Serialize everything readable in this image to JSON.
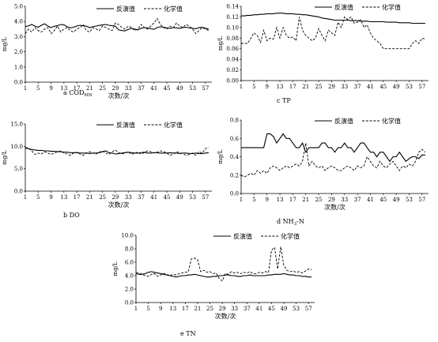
{
  "chart_data": [
    {
      "id": "a",
      "type": "line",
      "caption_letter": "a",
      "caption_text": "COD",
      "caption_sub": "MN",
      "ylabel": "mg/L",
      "xlabel": "次数/次",
      "ylim": [
        0,
        5
      ],
      "yticks": [
        "0.0",
        "1.0",
        "2.0",
        "3.0",
        "4.0",
        "5.0"
      ],
      "xlim": [
        1,
        59
      ],
      "xticks": [
        1,
        5,
        9,
        13,
        17,
        21,
        25,
        29,
        33,
        37,
        41,
        45,
        49,
        53,
        57
      ],
      "series": [
        {
          "name": "反演值",
          "style": "solid",
          "values": [
            3.65,
            3.72,
            3.8,
            3.7,
            3.62,
            3.75,
            3.85,
            3.7,
            3.6,
            3.68,
            3.72,
            3.8,
            3.78,
            3.65,
            3.58,
            3.62,
            3.7,
            3.75,
            3.72,
            3.68,
            3.6,
            3.65,
            3.7,
            3.74,
            3.78,
            3.8,
            3.75,
            3.72,
            3.7,
            3.45,
            3.4,
            3.38,
            3.48,
            3.55,
            3.5,
            3.45,
            3.55,
            3.6,
            3.58,
            3.52,
            3.48,
            3.6,
            3.65,
            3.62,
            3.58,
            3.55,
            3.6,
            3.58,
            3.55,
            3.6,
            3.62,
            3.58,
            3.55,
            3.52,
            3.6,
            3.62,
            3.55,
            3.5
          ]
        },
        {
          "name": "化学值",
          "style": "dashed",
          "values": [
            3.2,
            3.5,
            3.3,
            3.6,
            3.4,
            3.3,
            3.5,
            3.6,
            3.2,
            3.4,
            3.7,
            3.3,
            3.5,
            3.6,
            3.4,
            3.3,
            3.5,
            3.6,
            3.8,
            3.4,
            3.3,
            3.6,
            3.5,
            3.4,
            3.7,
            3.6,
            3.5,
            3.4,
            3.9,
            3.8,
            3.6,
            3.5,
            3.7,
            3.6,
            3.4,
            3.5,
            3.8,
            3.6,
            3.5,
            3.7,
            3.9,
            4.2,
            3.8,
            3.6,
            3.5,
            3.7,
            3.6,
            3.9,
            3.7,
            3.6,
            3.8,
            3.7,
            3.5,
            3.2,
            3.4,
            3.6,
            3.5,
            3.4
          ]
        }
      ]
    },
    {
      "id": "c",
      "type": "line",
      "caption_letter": "c",
      "caption_text": "TP",
      "caption_sub": "",
      "ylabel": "mg/L",
      "xlabel": "",
      "ylim": [
        0,
        0.14
      ],
      "yticks": [
        "0.00",
        "0.02",
        "0.04",
        "0.06",
        "0.08",
        "0.10",
        "0.12",
        "0.14"
      ],
      "xlim": [
        1,
        59
      ],
      "xticks": [
        1,
        5,
        9,
        13,
        17,
        21,
        25,
        29,
        33,
        37,
        41,
        45,
        49,
        53,
        57
      ],
      "series": [
        {
          "name": "反演值",
          "style": "solid",
          "values": [
            0.122,
            0.122,
            0.123,
            0.123,
            0.124,
            0.124,
            0.125,
            0.125,
            0.126,
            0.126,
            0.126,
            0.127,
            0.127,
            0.127,
            0.126,
            0.126,
            0.126,
            0.125,
            0.125,
            0.124,
            0.124,
            0.123,
            0.122,
            0.121,
            0.12,
            0.118,
            0.117,
            0.116,
            0.115,
            0.114,
            0.114,
            0.114,
            0.114,
            0.114,
            0.113,
            0.113,
            0.113,
            0.112,
            0.112,
            0.112,
            0.111,
            0.111,
            0.111,
            0.111,
            0.111,
            0.11,
            0.11,
            0.11,
            0.11,
            0.109,
            0.109,
            0.109,
            0.109,
            0.108,
            0.108,
            0.108,
            0.108,
            0.108
          ]
        },
        {
          "name": "化学值",
          "style": "dashed",
          "values": [
            0.07,
            0.07,
            0.07,
            0.08,
            0.09,
            0.085,
            0.072,
            0.095,
            0.075,
            0.08,
            0.078,
            0.1,
            0.08,
            0.1,
            0.085,
            0.08,
            0.082,
            0.075,
            0.12,
            0.095,
            0.085,
            0.08,
            0.075,
            0.08,
            0.098,
            0.085,
            0.075,
            0.095,
            0.09,
            0.085,
            0.11,
            0.1,
            0.12,
            0.115,
            0.12,
            0.108,
            0.11,
            0.115,
            0.1,
            0.105,
            0.09,
            0.08,
            0.075,
            0.07,
            0.06,
            0.06,
            0.06,
            0.06,
            0.06,
            0.06,
            0.06,
            0.06,
            0.06,
            0.07,
            0.075,
            0.07,
            0.08,
            0.078
          ]
        }
      ]
    },
    {
      "id": "b",
      "type": "line",
      "caption_letter": "b",
      "caption_text": "DO",
      "caption_sub": "",
      "ylabel": "mg/L",
      "xlabel": "次数/次",
      "ylim": [
        0,
        15
      ],
      "yticks": [
        "0.0",
        "5.0",
        "10.0",
        "15.0"
      ],
      "xlim": [
        1,
        59
      ],
      "xticks": [
        1,
        5,
        9,
        13,
        17,
        21,
        25,
        29,
        33,
        37,
        41,
        45,
        49,
        53,
        57
      ],
      "series": [
        {
          "name": "反演值",
          "style": "solid",
          "values": [
            9.6,
            9.5,
            9.3,
            9.2,
            9.1,
            9.1,
            9.0,
            9.0,
            8.9,
            8.9,
            8.8,
            8.8,
            8.7,
            8.7,
            8.6,
            8.6,
            8.6,
            8.5,
            8.5,
            8.5,
            8.4,
            8.5,
            8.5,
            8.6,
            8.8,
            9.0,
            8.6,
            8.5,
            8.3,
            8.4,
            8.5,
            8.6,
            8.7,
            8.6,
            8.5,
            8.5,
            8.6,
            8.7,
            8.5,
            8.5,
            8.6,
            8.6,
            8.5,
            8.5,
            8.5,
            8.6,
            8.5,
            8.5,
            8.4,
            8.5,
            8.5,
            8.4,
            8.4,
            8.5,
            8.4,
            8.4,
            8.5,
            8.6
          ]
        },
        {
          "name": "化学值",
          "style": "dashed",
          "values": [
            9.8,
            9.6,
            9.0,
            8.2,
            8.5,
            8.3,
            8.8,
            8.5,
            8.2,
            8.5,
            8.8,
            9.0,
            8.5,
            8.3,
            8.0,
            8.5,
            8.7,
            8.3,
            8.0,
            8.5,
            8.8,
            8.5,
            8.3,
            8.7,
            9.0,
            8.5,
            8.2,
            8.8,
            9.2,
            8.6,
            8.3,
            8.5,
            8.8,
            8.2,
            8.5,
            8.7,
            8.3,
            8.6,
            9.0,
            8.8,
            8.5,
            8.7,
            9.0,
            8.8,
            8.5,
            8.0,
            8.3,
            8.8,
            8.6,
            8.4,
            8.0,
            8.2,
            8.5,
            8.0,
            8.8,
            8.5,
            9.5,
            9.8
          ]
        }
      ]
    },
    {
      "id": "d",
      "type": "line",
      "caption_letter": "d",
      "caption_text": "NH",
      "caption_sub": "3",
      "caption_tail": "-N",
      "ylabel": "mg/L",
      "xlabel": "次数/次",
      "ylim": [
        0,
        0.8
      ],
      "yticks": [
        "0.0",
        "0.2",
        "0.4",
        "0.6",
        "0.8"
      ],
      "xlim": [
        1,
        59
      ],
      "xticks": [
        1,
        5,
        9,
        13,
        17,
        21,
        25,
        29,
        33,
        37,
        41,
        45,
        49,
        53,
        57
      ],
      "series": [
        {
          "name": "反演值",
          "style": "solid",
          "values": [
            0.5,
            0.5,
            0.5,
            0.5,
            0.5,
            0.5,
            0.5,
            0.5,
            0.65,
            0.65,
            0.62,
            0.55,
            0.6,
            0.65,
            0.6,
            0.6,
            0.55,
            0.5,
            0.5,
            0.55,
            0.45,
            0.5,
            0.5,
            0.5,
            0.5,
            0.55,
            0.55,
            0.5,
            0.5,
            0.45,
            0.5,
            0.5,
            0.55,
            0.5,
            0.5,
            0.45,
            0.5,
            0.55,
            0.55,
            0.5,
            0.45,
            0.45,
            0.4,
            0.45,
            0.45,
            0.4,
            0.35,
            0.4,
            0.4,
            0.45,
            0.4,
            0.35,
            0.38,
            0.4,
            0.4,
            0.38,
            0.42,
            0.42
          ]
        },
        {
          "name": "化学值",
          "style": "dashed",
          "values": [
            0.2,
            0.18,
            0.2,
            0.22,
            0.2,
            0.25,
            0.22,
            0.25,
            0.22,
            0.28,
            0.3,
            0.28,
            0.25,
            0.28,
            0.3,
            0.28,
            0.3,
            0.32,
            0.3,
            0.35,
            0.55,
            0.3,
            0.35,
            0.3,
            0.28,
            0.3,
            0.25,
            0.28,
            0.3,
            0.28,
            0.25,
            0.25,
            0.28,
            0.3,
            0.28,
            0.25,
            0.3,
            0.28,
            0.3,
            0.4,
            0.35,
            0.3,
            0.28,
            0.35,
            0.3,
            0.28,
            0.32,
            0.35,
            0.3,
            0.25,
            0.3,
            0.28,
            0.32,
            0.3,
            0.35,
            0.45,
            0.48,
            0.45
          ]
        }
      ]
    },
    {
      "id": "e",
      "type": "line",
      "caption_letter": "e",
      "caption_text": "TN",
      "caption_sub": "",
      "ylabel": "mg/L",
      "xlabel": "次数/次",
      "ylim": [
        0,
        10
      ],
      "yticks": [
        "0.0",
        "2.0",
        "4.0",
        "6.0",
        "8.0",
        "10.0"
      ],
      "xlim": [
        1,
        59
      ],
      "xticks": [
        1,
        5,
        9,
        13,
        17,
        21,
        25,
        29,
        33,
        37,
        41,
        45,
        49,
        53,
        57
      ],
      "series": [
        {
          "name": "反演值",
          "style": "solid",
          "values": [
            4.3,
            4.2,
            4.2,
            4.3,
            4.5,
            4.6,
            4.5,
            4.4,
            4.3,
            4.2,
            4.1,
            4.0,
            3.9,
            3.8,
            3.9,
            4.0,
            4.0,
            4.1,
            4.1,
            4.2,
            4.1,
            4.0,
            3.9,
            3.8,
            3.8,
            3.9,
            3.9,
            4.0,
            4.0,
            4.1,
            4.1,
            4.0,
            4.0,
            3.9,
            3.9,
            4.0,
            4.0,
            4.1,
            4.0,
            4.0,
            4.0,
            4.0,
            4.0,
            4.1,
            4.1,
            4.2,
            4.2,
            4.2,
            4.3,
            4.2,
            4.1,
            4.1,
            4.0,
            4.0,
            3.9,
            3.9,
            3.8,
            3.8
          ]
        },
        {
          "name": "化学值",
          "style": "dashed",
          "values": [
            4.5,
            4.4,
            4.2,
            4.0,
            3.9,
            4.2,
            4.3,
            3.9,
            4.1,
            4.3,
            4.2,
            4.0,
            4.2,
            4.1,
            4.3,
            4.4,
            4.5,
            4.6,
            6.5,
            6.6,
            6.4,
            4.6,
            4.8,
            4.5,
            4.6,
            4.3,
            4.4,
            3.6,
            3.2,
            4.3,
            4.2,
            4.6,
            4.4,
            4.5,
            4.3,
            4.5,
            4.4,
            4.6,
            4.3,
            4.3,
            4.5,
            4.4,
            4.6,
            4.5,
            7.8,
            8.2,
            5.0,
            8.3,
            5.5,
            4.8,
            4.6,
            4.7,
            4.5,
            4.6,
            4.4,
            4.7,
            5.0,
            4.9
          ]
        }
      ]
    }
  ],
  "legend": {
    "inversion": "反演值",
    "chemical": "化学值"
  }
}
